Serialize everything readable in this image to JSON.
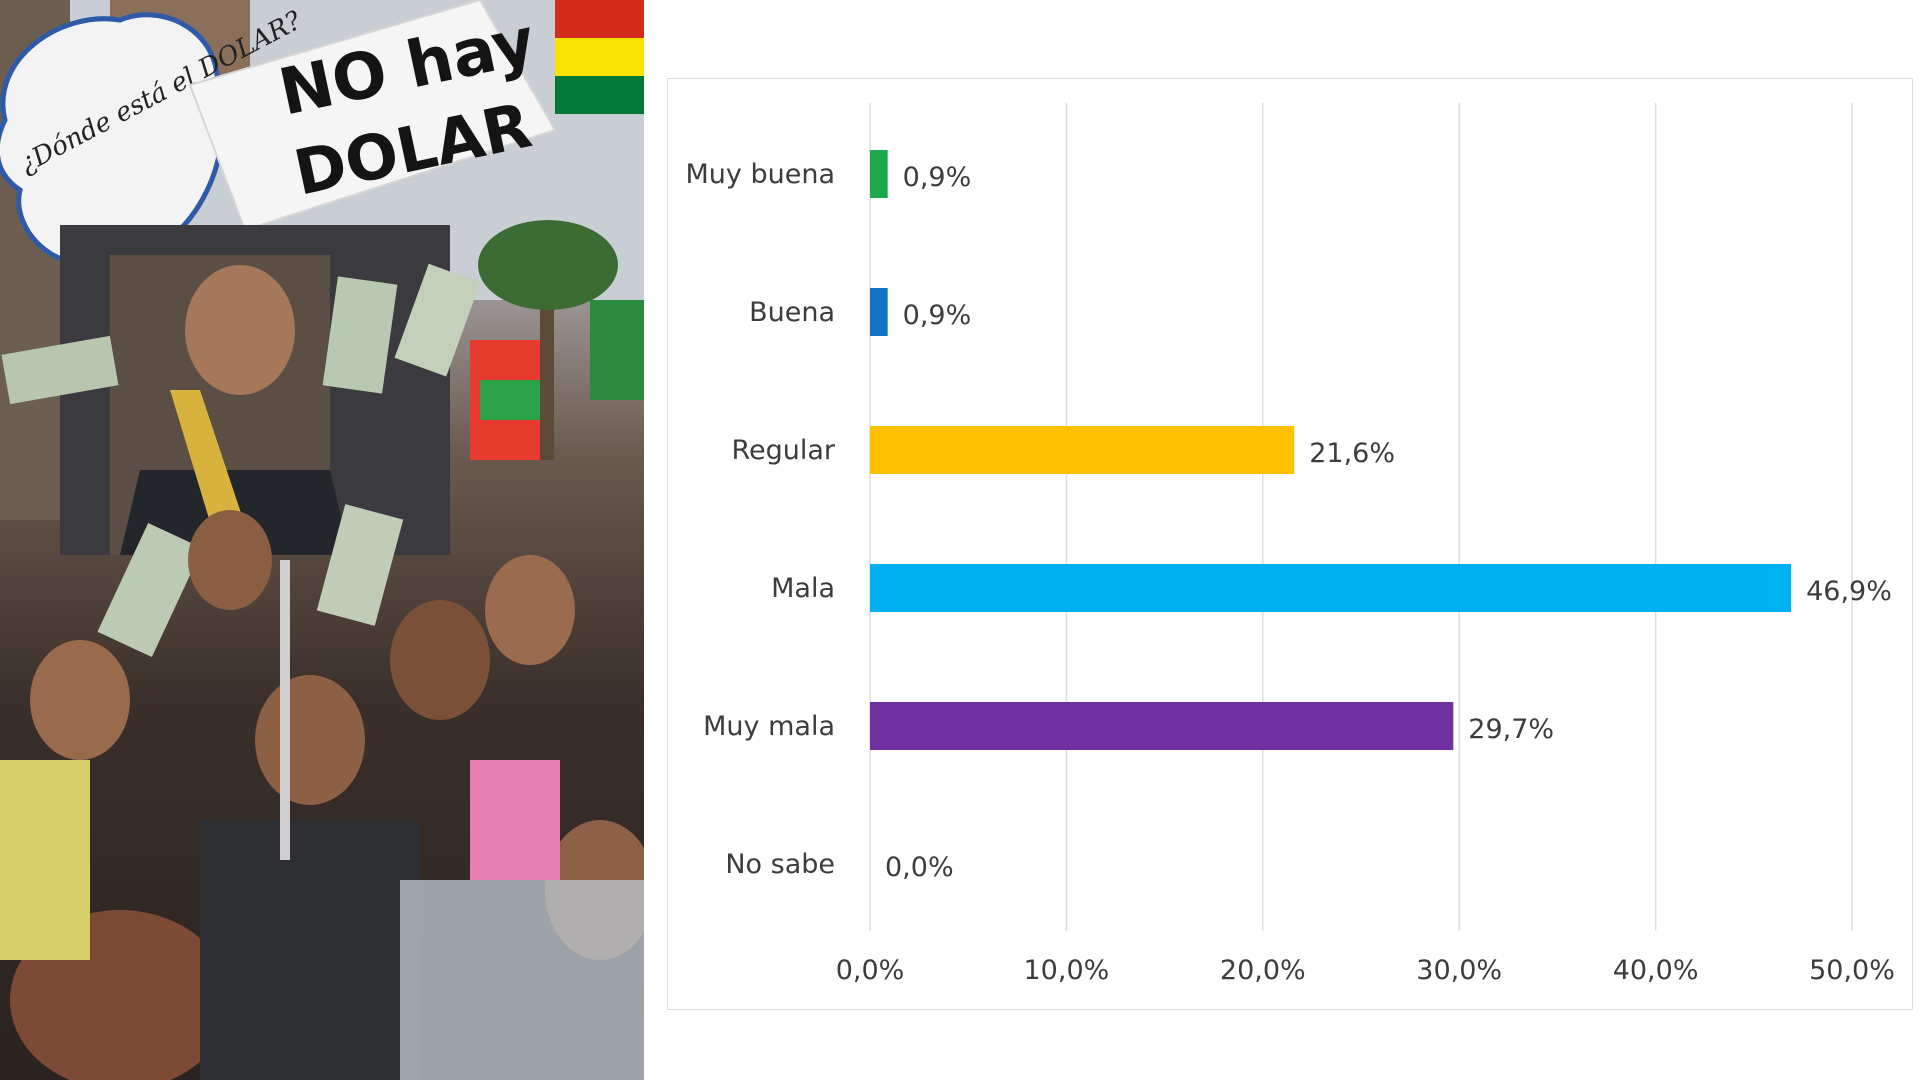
{
  "photo": {
    "sign_left": "¿Dónde está el DOLAR?",
    "sign_right_line1": "NO hay",
    "sign_right_line2": "DOLAR"
  },
  "chart_data": {
    "type": "bar",
    "orientation": "horizontal",
    "categories": [
      "Muy buena",
      "Buena",
      "Regular",
      "Mala",
      "Muy mala",
      "No sabe"
    ],
    "values": [
      0.9,
      0.9,
      21.6,
      46.9,
      29.7,
      0.0
    ],
    "value_labels": [
      "0,9%",
      "0,9%",
      "21,6%",
      "46,9%",
      "29,7%",
      "0,0%"
    ],
    "colors": [
      "#1aaa4b",
      "#1474c4",
      "#ffc000",
      "#00b0f0",
      "#7030a0",
      "#cccccc"
    ],
    "x_ticks": [
      0,
      10,
      20,
      30,
      40,
      50
    ],
    "x_tick_labels": [
      "0,0%",
      "10,0%",
      "20,0%",
      "30,0%",
      "40,0%",
      "50,0%"
    ],
    "xlim": [
      0,
      50
    ],
    "grid": "vertical",
    "title": "",
    "xlabel": "",
    "ylabel": ""
  }
}
